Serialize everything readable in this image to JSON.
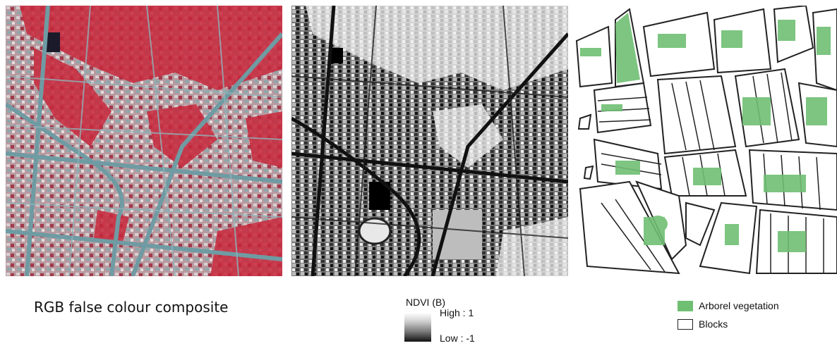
{
  "panels": {
    "rgb_caption": "RGB false colour composite",
    "ndvi_legend": {
      "title": "NDVI (B)",
      "high": "High : 1",
      "low": "Low : -1"
    },
    "blocks_legend": {
      "vegetation": "Arborel vegetation",
      "blocks": "Blocks"
    }
  },
  "colors": {
    "vegetation_red": "#c8283c",
    "urban_cyan": "#7fa6ad",
    "vegetation_green": "#6fbf73",
    "block_outline": "#222222"
  }
}
